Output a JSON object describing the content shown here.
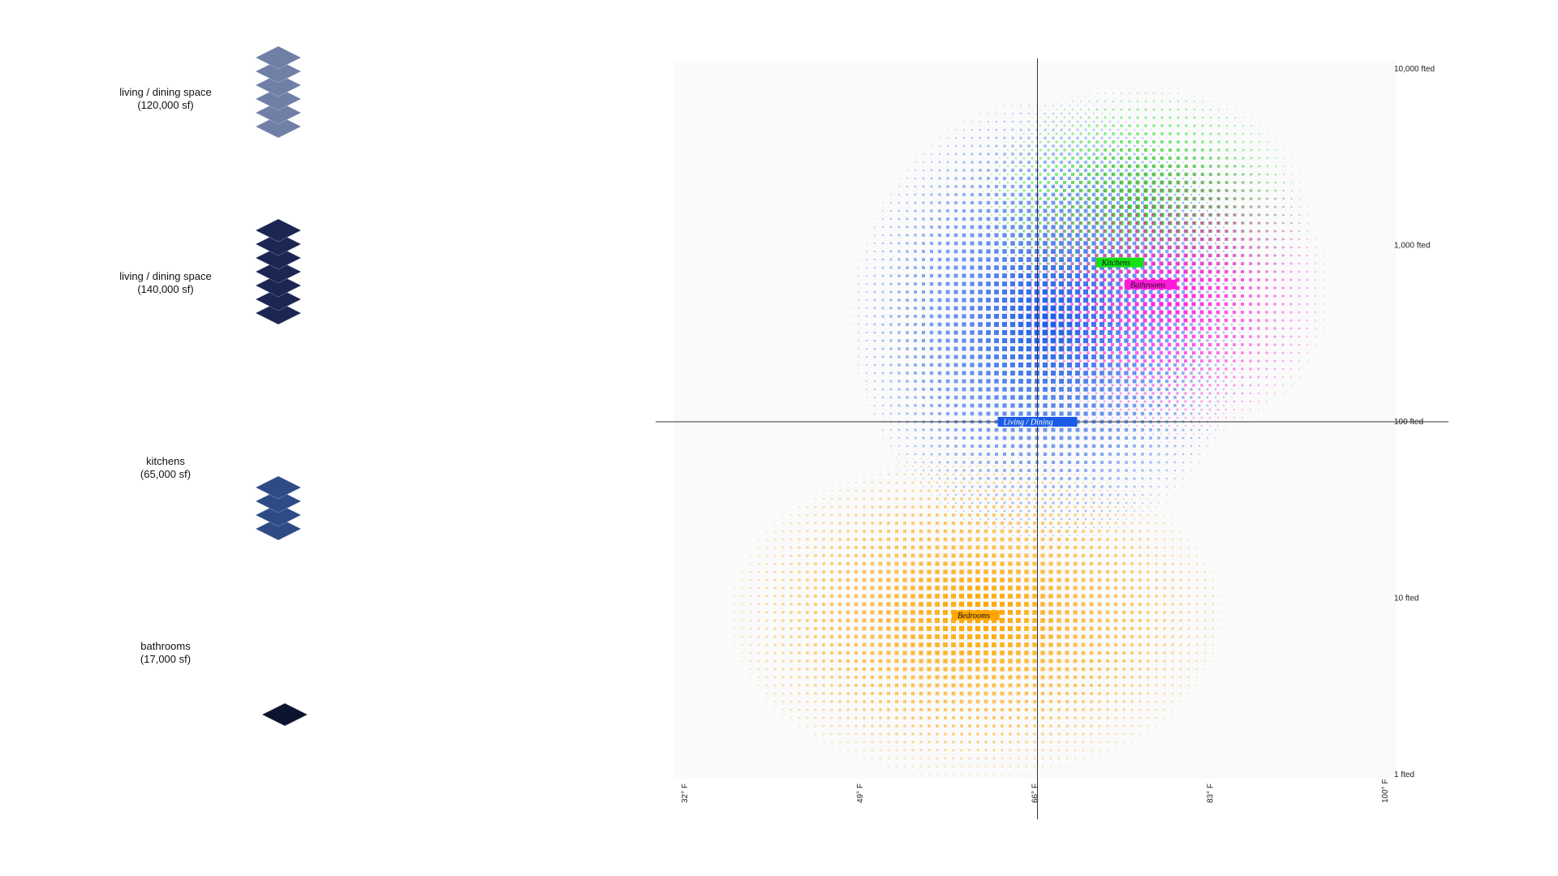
{
  "rooms": [
    {
      "name": "living / dining space",
      "area": "(120,000 sf)",
      "floors": 6,
      "color": "#6f7fa6"
    },
    {
      "name": "living / dining space",
      "area": "(140,000 sf)",
      "floors": 7,
      "color": "#1b2652"
    },
    {
      "name": "kitchens",
      "area": "(65,000 sf)",
      "floors": 4,
      "color": "#2f4b86"
    },
    {
      "name": "bathrooms",
      "area": "(17,000 sf)",
      "floors": 1,
      "color": "#0c1430"
    }
  ],
  "chart_data": {
    "type": "scatter",
    "x_axis": {
      "ticks": [
        "32° F",
        "49° F",
        "66° F",
        "83° F",
        "100° F"
      ],
      "values": [
        32,
        49,
        66,
        83,
        100
      ],
      "range": [
        32,
        100
      ]
    },
    "y_axis": {
      "scale": "log",
      "ticks": [
        "1 fted",
        "10 fted",
        "100 fted",
        "1,000 fted",
        "10,000 fted"
      ],
      "values": [
        1,
        10,
        100,
        1000,
        10000
      ],
      "range": [
        1,
        10000
      ]
    },
    "crosshair": {
      "x": 66,
      "y": 100
    },
    "zones": [
      {
        "label": "Bedrooms",
        "color": "#ffa500",
        "text_color": "#111111",
        "x": 60,
        "y": 8
      },
      {
        "label": "Living / Dining",
        "color": "#1a5ce6",
        "text_color": "#ffffff",
        "x": 66,
        "y": 100
      },
      {
        "label": "Kitchens",
        "color": "#14e014",
        "text_color": "#111111",
        "x": 74,
        "y": 800
      },
      {
        "label": "Bathrooms",
        "color": "#ff1ad9",
        "text_color": "#111111",
        "x": 77,
        "y": 600
      }
    ]
  }
}
